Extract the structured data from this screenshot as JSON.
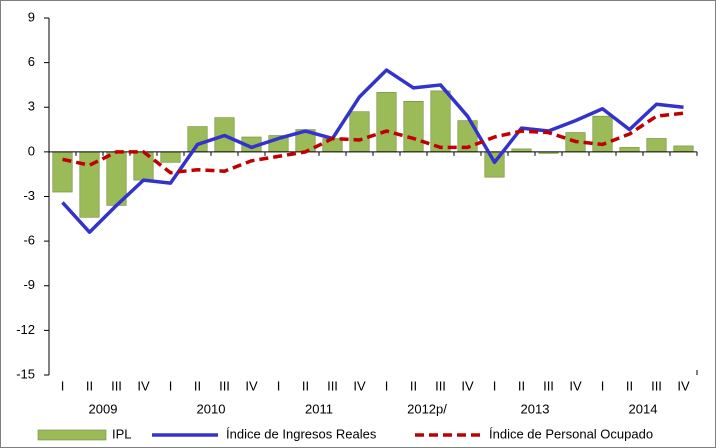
{
  "chart_data": {
    "type": "bar",
    "categories": [
      "I",
      "II",
      "III",
      "IV",
      "I",
      "II",
      "III",
      "IV",
      "I",
      "II",
      "III",
      "IV",
      "I",
      "II",
      "III",
      "IV",
      "I",
      "II",
      "III",
      "IV",
      "I",
      "II",
      "III",
      "IV"
    ],
    "years": [
      "2009",
      "2010",
      "2011",
      "2012p/",
      "2013",
      "2014"
    ],
    "ylim": [
      -15,
      9
    ],
    "yticks": [
      -15,
      -12,
      -9,
      -6,
      -3,
      0,
      3,
      6,
      9
    ],
    "series": [
      {
        "name": "IPL",
        "type": "bar",
        "color": "#9bbb59",
        "values": [
          -2.7,
          -4.4,
          -3.6,
          -1.9,
          -0.7,
          1.7,
          2.3,
          1.0,
          1.1,
          1.5,
          0.9,
          2.7,
          4.0,
          3.4,
          4.1,
          2.1,
          -1.7,
          0.2,
          -0.1,
          1.3,
          2.4,
          0.3,
          0.9,
          0.4
        ]
      },
      {
        "name": "Índice de Ingresos Reales",
        "type": "line",
        "color": "#3333cc",
        "values": [
          -3.4,
          -5.4,
          -3.6,
          -1.9,
          -2.1,
          0.5,
          1.1,
          0.3,
          0.9,
          1.4,
          0.9,
          3.7,
          5.5,
          4.3,
          4.5,
          2.4,
          -0.7,
          1.6,
          1.4,
          2.1,
          2.9,
          1.5,
          3.2,
          3.0
        ]
      },
      {
        "name": "Índice de Personal Ocupado",
        "type": "dashed-line",
        "color": "#c00000",
        "values": [
          -0.5,
          -0.9,
          0.0,
          0.0,
          -1.4,
          -1.2,
          -1.3,
          -0.6,
          -0.3,
          0.0,
          0.9,
          0.8,
          1.4,
          0.9,
          0.3,
          0.3,
          1.0,
          1.4,
          1.3,
          0.7,
          0.5,
          1.2,
          2.4,
          2.6
        ]
      }
    ]
  }
}
